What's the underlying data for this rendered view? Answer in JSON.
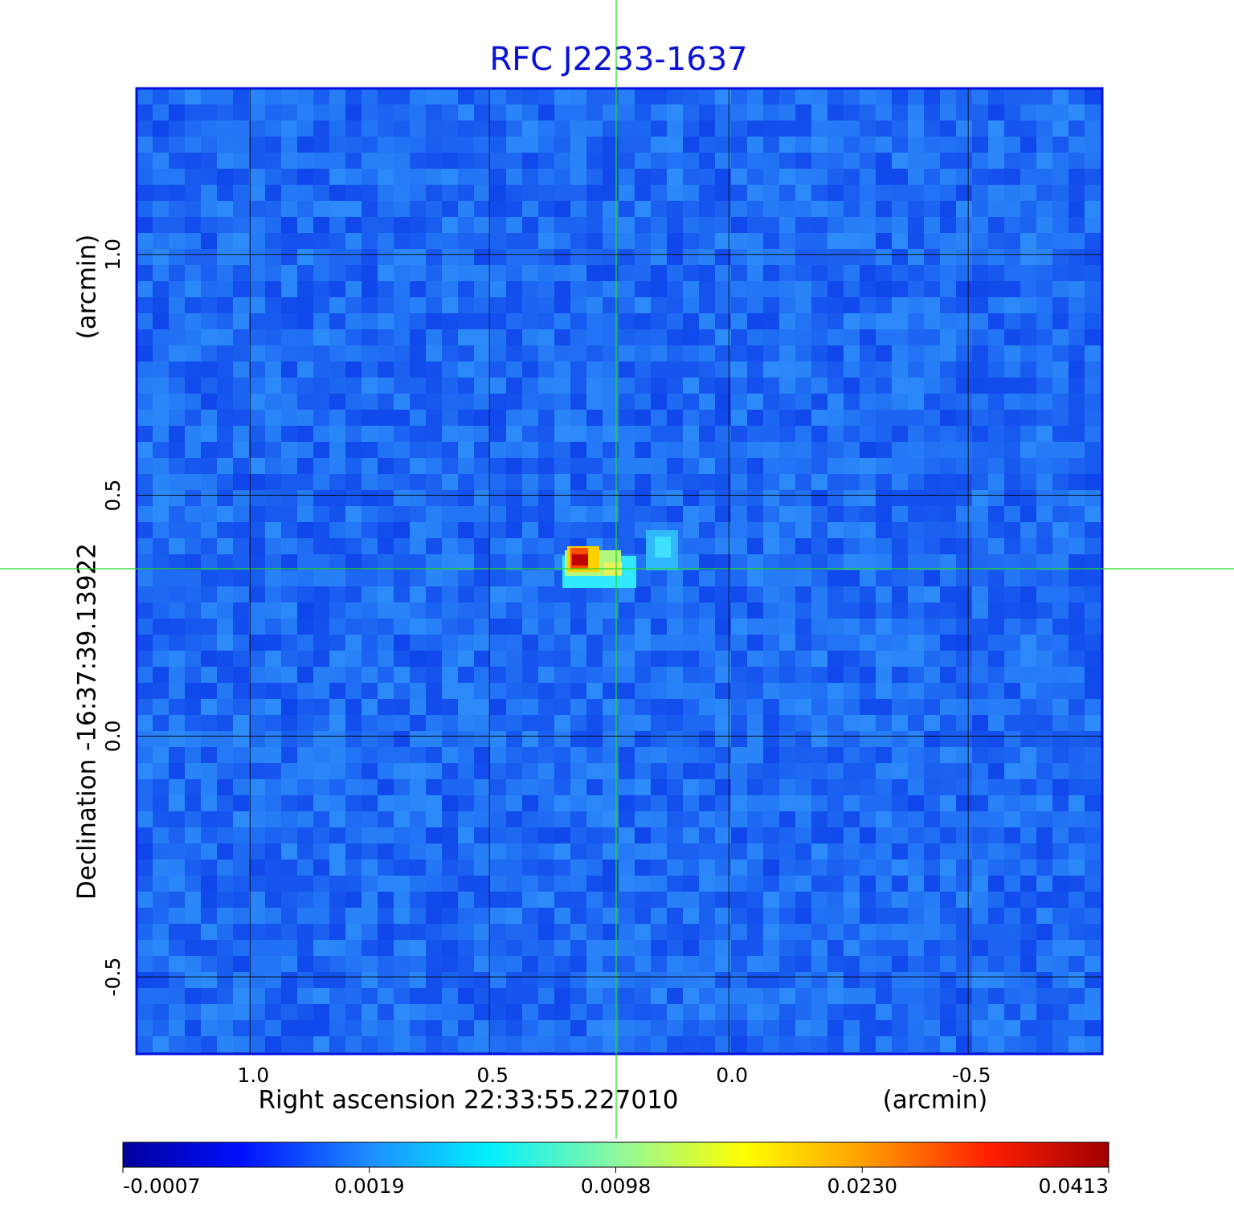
{
  "chart_data": {
    "type": "image",
    "title": "RFC J2233-1637",
    "x_label": "Right ascension  22:33:55.227010",
    "x_unit": "(arcmin)",
    "y_label": "Declination  -16:37:39.13922",
    "y_unit": "(arcmin)",
    "xlim": [
      1.237,
      -0.78
    ],
    "ylim": [
      -0.66,
      1.345
    ],
    "xticks": [
      {
        "value": 1,
        "label": "1.0"
      },
      0.5,
      {
        "value": 0,
        "label": "0.0"
      },
      -0.5
    ],
    "yticks": [
      -0.5,
      {
        "value": 0,
        "label": "0.0"
      },
      0.5,
      {
        "value": 1,
        "label": "1.0"
      }
    ],
    "grid": true,
    "colorbar_ticks": [
      -0.0007,
      0.0019,
      0.0098,
      {
        "value": 0.023,
        "label": "0.0230"
      },
      0.0413
    ]
  }
}
